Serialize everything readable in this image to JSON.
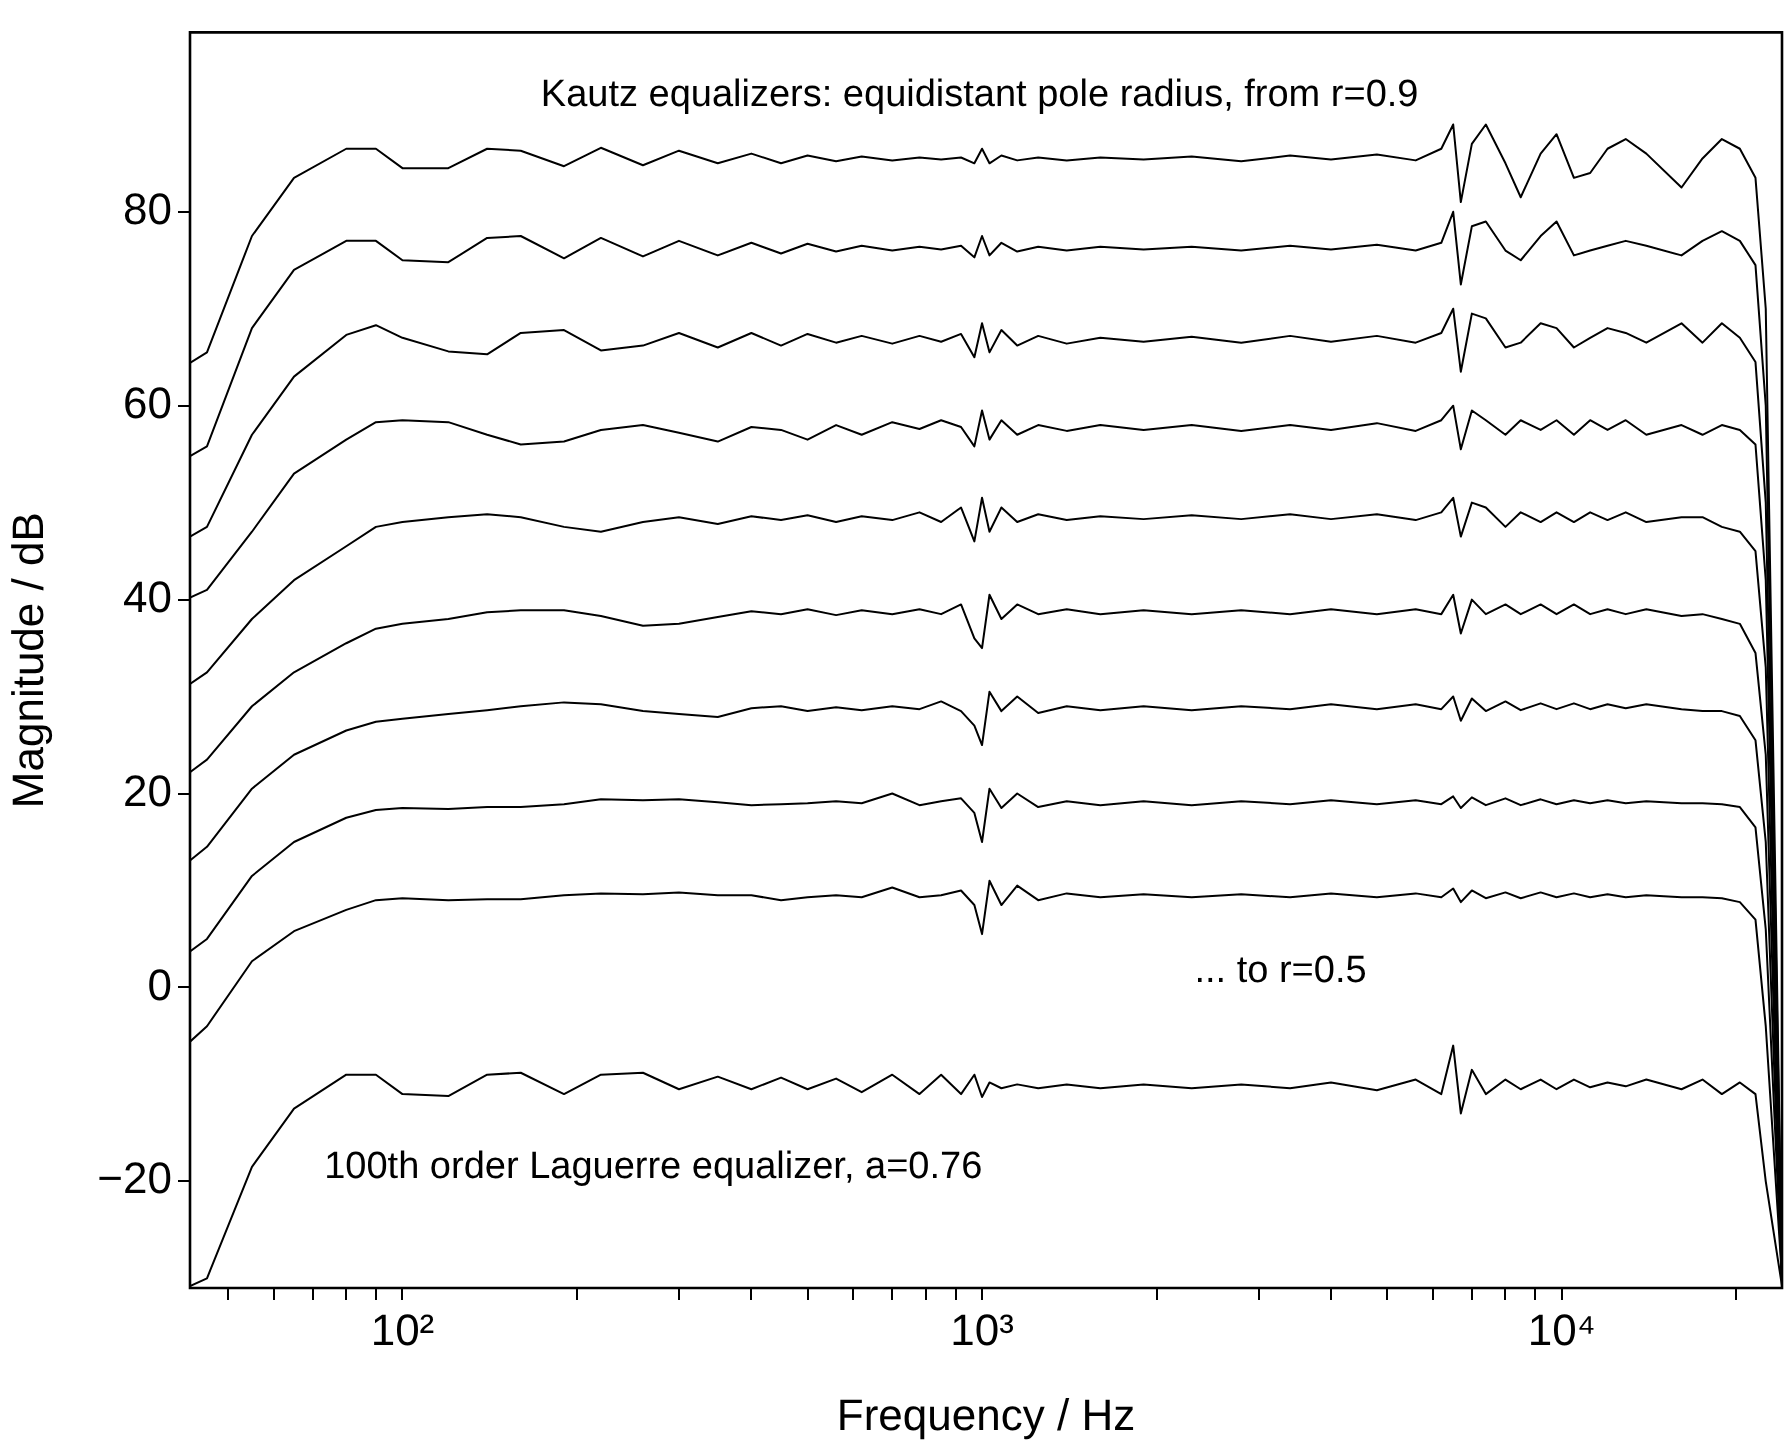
{
  "chart_data": {
    "type": "line",
    "xlabel": "Frequency / Hz",
    "ylabel": "Magnitude / dB",
    "log": "x",
    "marker": "none",
    "line_style": "solid",
    "legend": false,
    "grid": false,
    "annotations": [
      "Kautz equalizers: equidistant pole radius, from r=0.9",
      "... to r=0.5",
      "100th order Laguerre equalizer, a=0.76"
    ],
    "xlim": [
      43,
      24000
    ],
    "ylim": [
      -31,
      98.5
    ],
    "xticks": [
      {
        "value": 50,
        "label": null
      },
      {
        "value": 60,
        "label": null
      },
      {
        "value": 70,
        "label": null
      },
      {
        "value": 80,
        "label": null
      },
      {
        "value": 90,
        "label": null
      },
      {
        "value": 100,
        "label": "10²"
      },
      {
        "value": 200,
        "label": null
      },
      {
        "value": 300,
        "label": null
      },
      {
        "value": 400,
        "label": null
      },
      {
        "value": 500,
        "label": null
      },
      {
        "value": 600,
        "label": null
      },
      {
        "value": 700,
        "label": null
      },
      {
        "value": 800,
        "label": null
      },
      {
        "value": 900,
        "label": null
      },
      {
        "value": 1000,
        "label": "10³"
      },
      {
        "value": 2000,
        "label": null
      },
      {
        "value": 3000,
        "label": null
      },
      {
        "value": 4000,
        "label": null
      },
      {
        "value": 5000,
        "label": null
      },
      {
        "value": 6000,
        "label": null
      },
      {
        "value": 7000,
        "label": null
      },
      {
        "value": 8000,
        "label": null
      },
      {
        "value": 9000,
        "label": null
      },
      {
        "value": 10000,
        "label": "10⁴"
      },
      {
        "value": 20000,
        "label": null
      }
    ],
    "yticks": [
      -20,
      0,
      20,
      40,
      60,
      80
    ],
    "x": [
      43,
      46,
      55,
      65,
      80,
      90,
      100,
      120,
      140,
      160,
      190,
      220,
      260,
      300,
      350,
      400,
      450,
      500,
      560,
      620,
      700,
      780,
      850,
      920,
      970,
      1000,
      1030,
      1080,
      1150,
      1250,
      1400,
      1600,
      1900,
      2300,
      2800,
      3400,
      4000,
      4800,
      5600,
      6200,
      6500,
      6700,
      7000,
      7400,
      8000,
      8500,
      9200,
      9800,
      10500,
      11200,
      12000,
      12900,
      14000,
      16100,
      17500,
      18900,
      20300,
      21600,
      22500,
      24000
    ],
    "series": [
      {
        "color": "#000000",
        "values": [
          64.4,
          65.5,
          77.5,
          83.5,
          86.5,
          86.5,
          84.5,
          84.5,
          86.5,
          86.3,
          84.7,
          86.6,
          84.8,
          86.3,
          85,
          86,
          85,
          85.8,
          85.2,
          85.7,
          85.3,
          85.6,
          85.4,
          85.6,
          85,
          86.5,
          85,
          85.8,
          85.3,
          85.6,
          85.3,
          85.6,
          85.4,
          85.7,
          85.2,
          85.8,
          85.4,
          85.9,
          85.3,
          86.5,
          89,
          81,
          87,
          89,
          85,
          81.5,
          86,
          88,
          83.5,
          84,
          86.5,
          87.5,
          86,
          82.5,
          85.5,
          87.5,
          86.5,
          83.5,
          70,
          -30
        ]
      },
      {
        "color": "#000000",
        "values": [
          54.8,
          55.8,
          68,
          74,
          77,
          77,
          75,
          74.8,
          77.3,
          77.5,
          75.2,
          77.3,
          75.4,
          77,
          75.5,
          76.8,
          75.7,
          76.7,
          75.9,
          76.5,
          76,
          76.4,
          76.1,
          76.5,
          75.3,
          77.5,
          75.5,
          76.8,
          75.9,
          76.4,
          76,
          76.4,
          76.1,
          76.4,
          76,
          76.5,
          76.1,
          76.6,
          76,
          76.8,
          80,
          72.5,
          78.5,
          79,
          76,
          75,
          77.5,
          79,
          75.5,
          76,
          76.5,
          77,
          76.5,
          75.5,
          77,
          78,
          77,
          74.5,
          60,
          -30
        ]
      },
      {
        "color": "#000000",
        "values": [
          46.5,
          47.5,
          57,
          63,
          67.3,
          68.3,
          67,
          65.6,
          65.3,
          67.5,
          67.8,
          65.7,
          66.2,
          67.5,
          66,
          67.5,
          66.2,
          67.4,
          66.5,
          67.2,
          66.4,
          67.2,
          66.6,
          67.4,
          65,
          68.5,
          65.5,
          67.8,
          66.2,
          67.2,
          66.4,
          67,
          66.6,
          67.1,
          66.5,
          67.2,
          66.6,
          67.2,
          66.5,
          67.5,
          70,
          63.5,
          69.5,
          69,
          66,
          66.5,
          68.5,
          68,
          66,
          67,
          68,
          67.5,
          66.5,
          68.5,
          66.5,
          68.5,
          67,
          64.5,
          50,
          -30
        ]
      },
      {
        "color": "#000000",
        "values": [
          40.2,
          41,
          47,
          53,
          56.5,
          58.3,
          58.5,
          58.3,
          57,
          56,
          56.3,
          57.5,
          58,
          57.2,
          56.3,
          57.8,
          57.5,
          56.5,
          58,
          57,
          58.3,
          57.6,
          58.5,
          57.8,
          55.8,
          59.5,
          56.5,
          58.5,
          57,
          58,
          57.4,
          58,
          57.5,
          58,
          57.4,
          58,
          57.5,
          58.2,
          57.4,
          58.5,
          60,
          55.5,
          59.5,
          58.5,
          57,
          58.5,
          57.5,
          58.5,
          57,
          58.5,
          57.5,
          58.5,
          57,
          58,
          57,
          58,
          57.5,
          56,
          42,
          -30
        ]
      },
      {
        "color": "#000000",
        "values": [
          31.3,
          32.5,
          38,
          42,
          45.5,
          47.5,
          48,
          48.5,
          48.8,
          48.5,
          47.5,
          47,
          48,
          48.5,
          47.8,
          48.6,
          48.2,
          48.7,
          48,
          48.6,
          48.2,
          49,
          48,
          49.5,
          46,
          50.5,
          47,
          49.5,
          48,
          48.8,
          48.2,
          48.6,
          48.3,
          48.7,
          48.3,
          48.8,
          48.3,
          48.8,
          48.2,
          49,
          50.5,
          46.5,
          50,
          49.5,
          47.5,
          49,
          48,
          49,
          48,
          49,
          48.2,
          49,
          48,
          48.5,
          48.5,
          47.5,
          47,
          45,
          33,
          -30
        ]
      },
      {
        "color": "#000000",
        "values": [
          22.2,
          23.5,
          29,
          32.5,
          35.5,
          37,
          37.5,
          38,
          38.7,
          38.9,
          38.9,
          38.3,
          37.3,
          37.5,
          38.2,
          38.8,
          38.5,
          39,
          38.4,
          38.9,
          38.5,
          39,
          38.5,
          39.5,
          36,
          35,
          40.5,
          38,
          39.5,
          38.5,
          39,
          38.5,
          38.9,
          38.5,
          38.9,
          38.5,
          39,
          38.5,
          39,
          38.5,
          40.5,
          36.5,
          40,
          38.5,
          39.5,
          38.5,
          39.5,
          38.5,
          39.5,
          38.5,
          39,
          38.5,
          39,
          38.3,
          38.5,
          38,
          37.5,
          34.5,
          24,
          -30
        ]
      },
      {
        "color": "#000000",
        "values": [
          13.1,
          14.5,
          20.5,
          24,
          26.5,
          27.4,
          27.7,
          28.2,
          28.6,
          29,
          29.4,
          29.2,
          28.5,
          28.2,
          27.9,
          28.8,
          29,
          28.5,
          28.9,
          28.6,
          29,
          28.7,
          29.5,
          28.5,
          27,
          25,
          30.5,
          28.5,
          30,
          28.3,
          29,
          28.6,
          29,
          28.6,
          29,
          28.7,
          29.2,
          28.7,
          29.2,
          28.7,
          30,
          27.5,
          29.8,
          28.5,
          29.5,
          28.6,
          29.3,
          28.7,
          29.3,
          28.7,
          29.2,
          28.8,
          29.2,
          28.7,
          28.5,
          28.5,
          28,
          25.5,
          15,
          -30
        ]
      },
      {
        "color": "#000000",
        "values": [
          3.7,
          5,
          11.5,
          15,
          17.5,
          18.3,
          18.5,
          18.4,
          18.6,
          18.6,
          18.9,
          19.4,
          19.3,
          19.4,
          19.1,
          18.8,
          18.9,
          19,
          19.2,
          19,
          20,
          18.8,
          19.2,
          19.5,
          18,
          15,
          20.5,
          18.5,
          20,
          18.6,
          19.2,
          18.8,
          19.2,
          18.8,
          19.2,
          18.9,
          19.3,
          18.9,
          19.3,
          18.9,
          19.7,
          18.5,
          19.6,
          18.8,
          19.5,
          18.8,
          19.4,
          18.9,
          19.3,
          19,
          19.3,
          19,
          19.2,
          19,
          19,
          18.9,
          18.6,
          16.5,
          6,
          -30
        ]
      },
      {
        "color": "#000000",
        "values": [
          -5.6,
          -4,
          2.7,
          5.8,
          8,
          9,
          9.2,
          9,
          9.1,
          9.1,
          9.5,
          9.7,
          9.6,
          9.8,
          9.5,
          9.5,
          9,
          9.3,
          9.5,
          9.3,
          10.3,
          9.3,
          9.5,
          10,
          8.5,
          5.5,
          11,
          8.5,
          10.5,
          9,
          9.7,
          9.3,
          9.6,
          9.3,
          9.6,
          9.3,
          9.7,
          9.3,
          9.7,
          9.3,
          10.2,
          8.8,
          10,
          9.2,
          9.8,
          9.2,
          9.8,
          9.3,
          9.7,
          9.3,
          9.6,
          9.3,
          9.5,
          9.3,
          9.3,
          9.2,
          8.8,
          7,
          -4,
          -30
        ]
      },
      {
        "color": "#000000",
        "values": [
          -30.8,
          -30,
          -18.5,
          -12.5,
          -9,
          -9,
          -11,
          -11.2,
          -9,
          -8.8,
          -11,
          -9,
          -8.8,
          -10.5,
          -9.2,
          -10.5,
          -9.3,
          -10.5,
          -9.4,
          -10.8,
          -9,
          -11,
          -9,
          -11,
          -9,
          -11.3,
          -9.8,
          -10.4,
          -10,
          -10.4,
          -10,
          -10.4,
          -10,
          -10.4,
          -10,
          -10.4,
          -9.8,
          -10.6,
          -9.5,
          -11,
          -6,
          -13,
          -8.5,
          -11,
          -9.5,
          -10.5,
          -9.5,
          -10.5,
          -9.5,
          -10.3,
          -9.8,
          -10.2,
          -9.5,
          -10.5,
          -9.5,
          -11,
          -9.8,
          -11,
          -20,
          -30.8
        ]
      }
    ]
  }
}
